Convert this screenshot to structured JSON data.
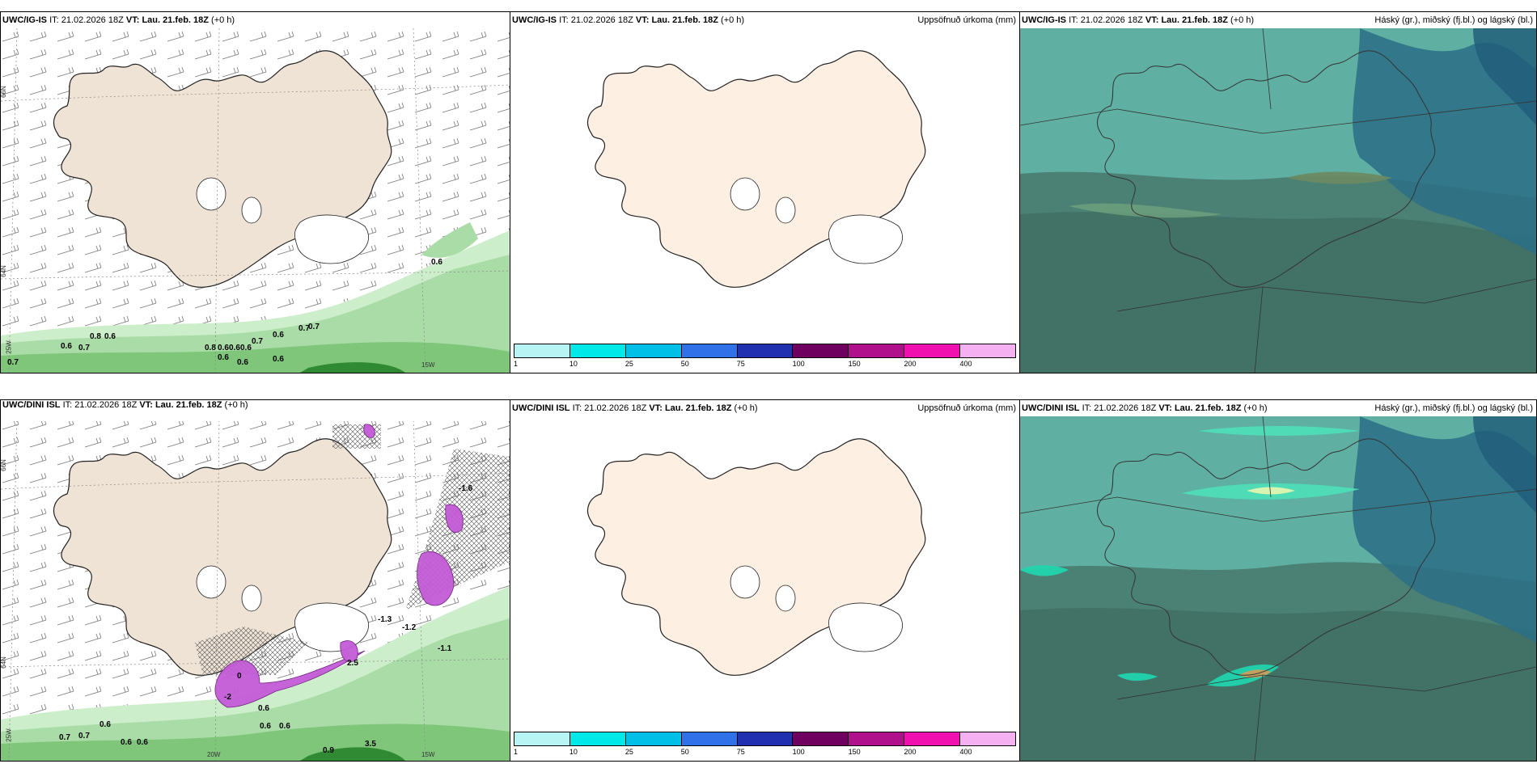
{
  "panels": {
    "p1": {
      "model": "UWC/IG-IS",
      "it_label": "IT:",
      "it_value": "21.02.2026 18Z",
      "vt_label": "VT:",
      "vt_value": "Lau. 21.feb. 18Z",
      "lead": "(+0 h)"
    },
    "p2": {
      "model": "UWC/IG-IS",
      "it_label": "IT:",
      "it_value": "21.02.2026 18Z",
      "vt_label": "VT:",
      "vt_value": "Lau. 21.feb. 18Z",
      "lead": "(+0 h)",
      "title": "Uppsöfnuð úrkoma (mm)"
    },
    "p3": {
      "model": "UWC/IG-IS",
      "it_label": "IT:",
      "it_value": "21.02.2026 18Z",
      "vt_label": "VT:",
      "vt_value": "Lau. 21.feb. 18Z",
      "lead": "(+0 h)",
      "title": "Háský (gr.), miðský (fj.bl.) og lágský (bl.)"
    },
    "p4": {
      "model": "UWC/DINI ISL",
      "it_label": "IT:",
      "it_value": "21.02.2026 18Z",
      "vt_label": "VT:",
      "vt_value": "Lau. 21.feb. 18Z",
      "lead": "(+0 h)"
    },
    "p5": {
      "model": "UWC/DINI ISL",
      "it_label": "IT:",
      "it_value": "21.02.2026 18Z",
      "vt_label": "VT:",
      "vt_value": "Lau. 21.feb. 18Z",
      "lead": "(+0 h)",
      "title": "Uppsöfnuð úrkoma (mm)"
    },
    "p6": {
      "model": "UWC/DINI ISL",
      "it_label": "IT:",
      "it_value": "21.02.2026 18Z",
      "vt_label": "VT:",
      "vt_value": "Lau. 21.feb. 18Z",
      "lead": "(+0 h)",
      "title": "Háský (gr.), miðský (fj.bl.) og lágský (bl.)"
    }
  },
  "axis_labels": {
    "lat_66": "66N",
    "lat_64": "64N",
    "lon_25w": "25W",
    "lon_20w": "20W",
    "lon_15w": "15W"
  },
  "colorbar": {
    "colors": [
      "#b8f4f4",
      "#00e8e8",
      "#00c0e8",
      "#3070e8",
      "#2030b0",
      "#700060",
      "#b0108c",
      "#f010b0",
      "#f4b0f0"
    ],
    "ticks": [
      "1",
      "10",
      "25",
      "50",
      "75",
      "100",
      "150",
      "200",
      "400"
    ]
  },
  "contour_labels_top": [
    "0.7",
    "0.8",
    "0.6",
    "0.6",
    "0.7",
    "0.8",
    "0.6",
    "0.6",
    "0.6",
    "0.7",
    "0.6",
    "0.7",
    "0.7",
    "0.6",
    "0.6",
    "0.6",
    "0.6"
  ],
  "contour_labels_bottom": [
    "0.7",
    "0.7",
    "0.6",
    "0.6",
    "0.6",
    "0.6",
    "0.6",
    "0.9",
    "-1.6",
    "-1.3",
    "-1.2",
    "-1.1",
    "2.5",
    "0",
    "-2",
    "0.6",
    "3.5"
  ]
}
